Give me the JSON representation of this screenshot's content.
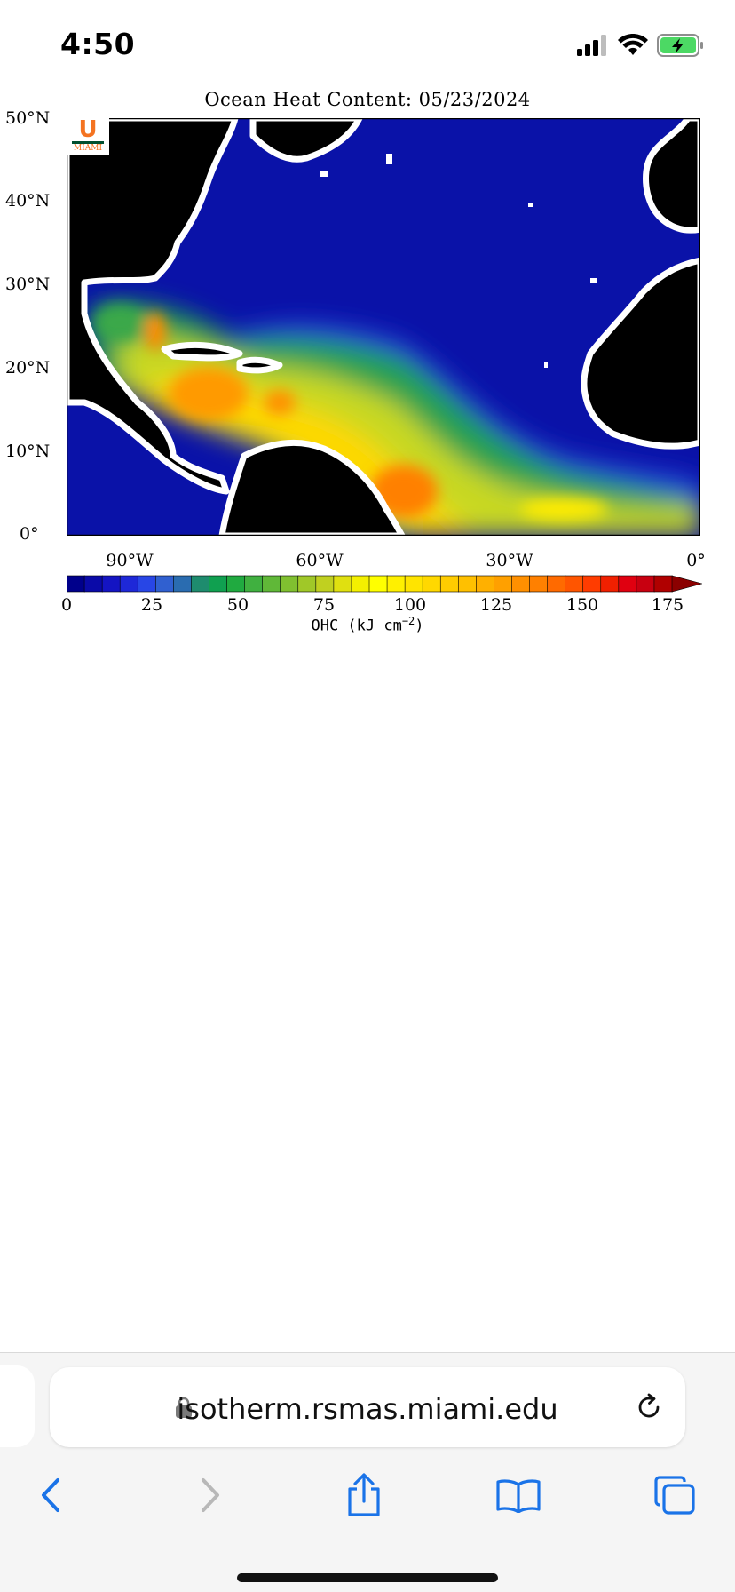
{
  "status_bar": {
    "time": "4:50",
    "icons": [
      "signal-icon",
      "wifi-icon",
      "battery-charging-icon"
    ],
    "battery_color": "#4cd964"
  },
  "figure": {
    "title": "Ocean Heat Content: 05/23/2024",
    "logo": {
      "letter": "U",
      "text": "MIAMI"
    },
    "lat_labels": [
      "50°N",
      "40°N",
      "30°N",
      "20°N",
      "10°N",
      "0°"
    ],
    "lon_labels": [
      "90°W",
      "60°W",
      "30°W",
      "0°"
    ],
    "colorbar": {
      "ticks": [
        "0",
        "25",
        "50",
        "75",
        "100",
        "125",
        "150",
        "175"
      ],
      "label": "OHC (kJ cm",
      "label_exponent": "−2",
      "label_close": ")",
      "colors": [
        "#00008b",
        "#0a0aa8",
        "#1414c3",
        "#1e28d8",
        "#2846e6",
        "#3060d0",
        "#2a6cb0",
        "#1e8c6e",
        "#10a050",
        "#20aa40",
        "#40b040",
        "#60b838",
        "#80c030",
        "#a0c828",
        "#c0d020",
        "#e0e010",
        "#f4f000",
        "#ffff00",
        "#fff000",
        "#ffe400",
        "#ffd800",
        "#ffcc00",
        "#ffc000",
        "#ffb000",
        "#ffa000",
        "#ff9000",
        "#ff8000",
        "#ff6a00",
        "#ff5500",
        "#ff3c00",
        "#f02000",
        "#e00010",
        "#c80010",
        "#b00000",
        "#8b0000"
      ],
      "colors_note": "no"
    }
  },
  "browser": {
    "url": "isotherm.rsmas.miami.edu",
    "accent": "#1a73e8",
    "nav": [
      "back-icon",
      "forward-icon",
      "share-icon",
      "bookmarks-icon",
      "tabs-icon"
    ]
  }
}
